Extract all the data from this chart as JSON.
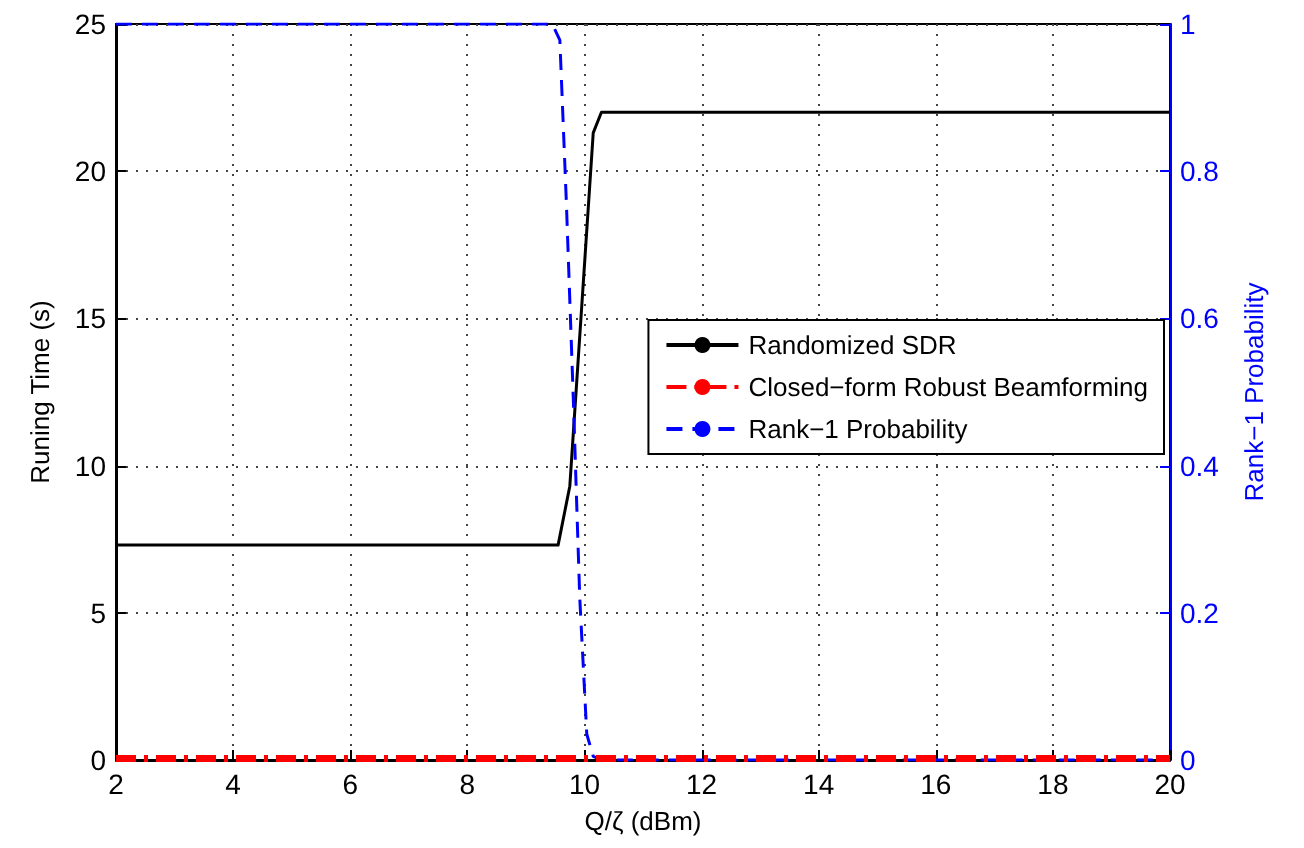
{
  "chart_data": {
    "type": "line",
    "xlabel": "Q/ζ (dBm)",
    "ylabel": "Runing Time (s)",
    "y2label": "Rank−1 Probability",
    "xlim": [
      2,
      20
    ],
    "xticks": [
      2,
      4,
      6,
      8,
      10,
      12,
      14,
      16,
      18,
      20
    ],
    "ylim": [
      0,
      25
    ],
    "yticks": [
      0,
      5,
      10,
      15,
      20,
      25
    ],
    "y2lim": [
      0,
      1
    ],
    "y2ticks": [
      0,
      0.2,
      0.4,
      0.6,
      0.8,
      1
    ],
    "grid": true,
    "legend": "right",
    "marker": "none",
    "series": [
      {
        "name": "Randomized SDR",
        "color": "#000000",
        "line_style": "solid",
        "x": [
          2,
          9.55,
          9.75,
          10.15,
          10.29,
          20
        ],
        "values": [
          7.3,
          7.3,
          9.3,
          21.3,
          22,
          22
        ]
      },
      {
        "name": "Closed−form Robust Beamforming",
        "color": "#ff0000",
        "line_style": "dashdot",
        "x": [
          2,
          20
        ],
        "values": [
          0.05,
          0.05
        ]
      },
      {
        "name": "Rank−1 Probability",
        "color": "#0000ff",
        "line_style": "dashed",
        "axis": "y2",
        "x": [
          2,
          9.45,
          9.58,
          9.69,
          9.81,
          9.92,
          10.04,
          10.15,
          10.3,
          20
        ],
        "values": [
          1,
          1,
          0.978,
          0.76,
          0.49,
          0.22,
          0.035,
          0.005,
          0,
          0
        ]
      }
    ]
  }
}
